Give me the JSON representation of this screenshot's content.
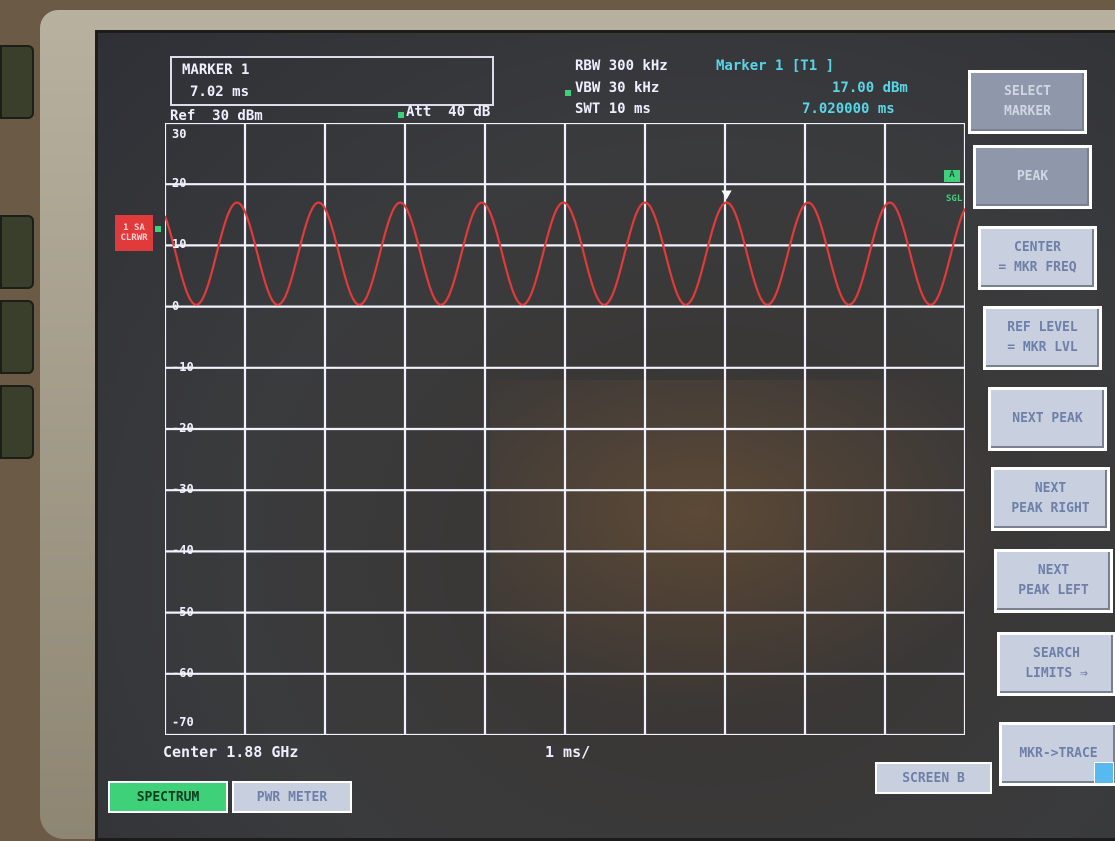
{
  "header": {
    "marker_box_title": "MARKER 1",
    "marker_box_value": "7.02 ms",
    "ref_level": "Ref  30 dBm",
    "att": "Att  40 dB",
    "rbw": "RBW 300 kHz",
    "vbw": "VBW 30 kHz",
    "swt": "SWT 10 ms",
    "marker_label": "Marker 1 [T1 ]",
    "marker_level": "17.00 dBm",
    "marker_time": "7.020000 ms"
  },
  "trace_labels": {
    "ref_tag_1": "1 SA",
    "ref_tag_2": "CLRWR",
    "right_tag_1": "A",
    "right_tag_2": "SGL"
  },
  "footer": {
    "center": "Center 1.88 GHz",
    "span": "1 ms/"
  },
  "softkeys": [
    {
      "line1": "SELECT",
      "line2": "MARKER",
      "style": "dim"
    },
    {
      "line1": "PEAK",
      "line2": "",
      "style": "dim"
    },
    {
      "line1": "CENTER",
      "line2": "= MKR FREQ",
      "style": "normal"
    },
    {
      "line1": "REF LEVEL",
      "line2": "= MKR  LVL",
      "style": "normal"
    },
    {
      "line1": "NEXT PEAK",
      "line2": "",
      "style": "normal"
    },
    {
      "line1": "NEXT",
      "line2": "PEAK RIGHT",
      "style": "normal"
    },
    {
      "line1": "NEXT",
      "line2": "PEAK LEFT",
      "style": "normal"
    },
    {
      "line1": "SEARCH",
      "line2": "LIMITS ⇒",
      "style": "normal"
    },
    {
      "line1": "MKR->TRACE",
      "line2": "",
      "style": "normal"
    }
  ],
  "bottom_buttons": {
    "spectrum": "SPECTRUM",
    "pwr_meter": "PWR METER",
    "screen": "SCREEN B"
  },
  "y_ticks": [
    "30",
    "20",
    "10",
    "0",
    "-10",
    "-20",
    "-30",
    "-40",
    "-50",
    "-60",
    "-70"
  ],
  "chart_data": {
    "type": "line",
    "x_range": [
      0,
      10
    ],
    "ylim": [
      -70,
      30
    ],
    "grid": true,
    "series": [
      {
        "color": "#e03a3a",
        "period_ms": 1.02,
        "peak_dbm": 17.0,
        "trough_dbm": 0.3,
        "marker": {
          "x_ms": 7.02,
          "y_dbm": 17.0
        }
      }
    ]
  },
  "colors": {
    "trace": "#e03a3a",
    "grid": "#f2f2ff",
    "info_cyan": "#58d6e8",
    "spectrum_button": "#3fd07a"
  }
}
